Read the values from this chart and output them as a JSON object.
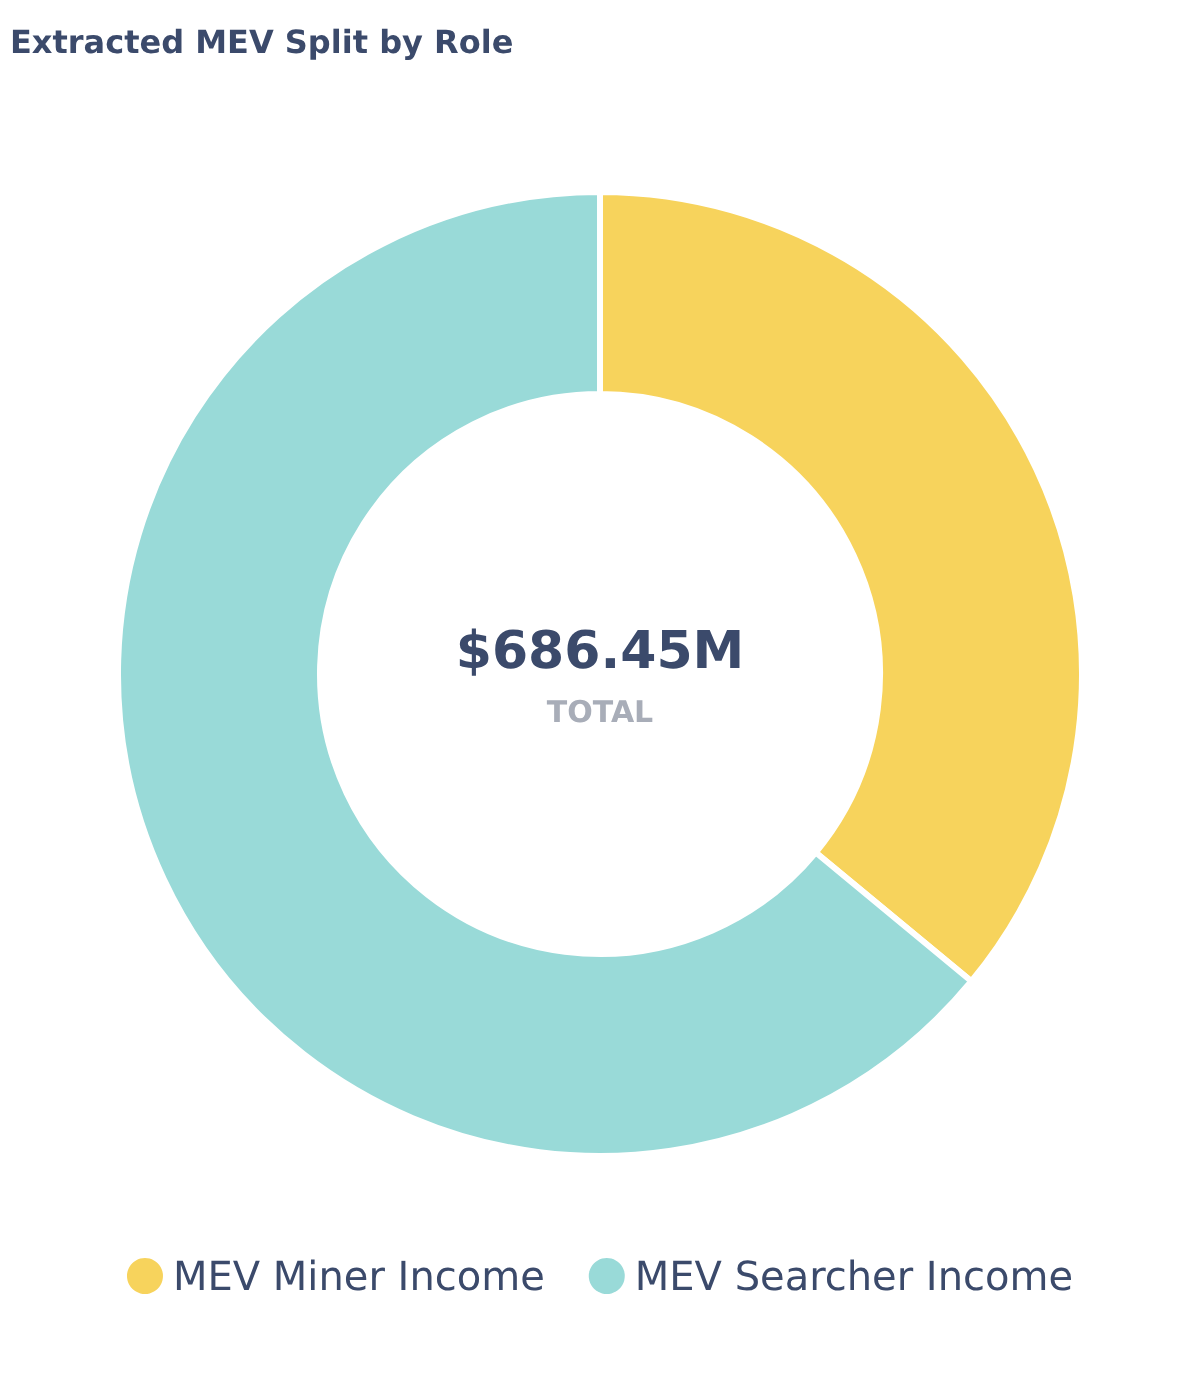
{
  "chart_data": {
    "type": "donut",
    "title": "Extracted MEV Split by Role",
    "categories": [
      "MEV Miner Income",
      "MEV Searcher Income"
    ],
    "values": [
      36,
      64
    ],
    "colors": [
      "#f7d35c",
      "#99dad8"
    ],
    "annotations": [
      "$686.45M",
      "TOTAL"
    ],
    "legend": "bottom"
  }
}
